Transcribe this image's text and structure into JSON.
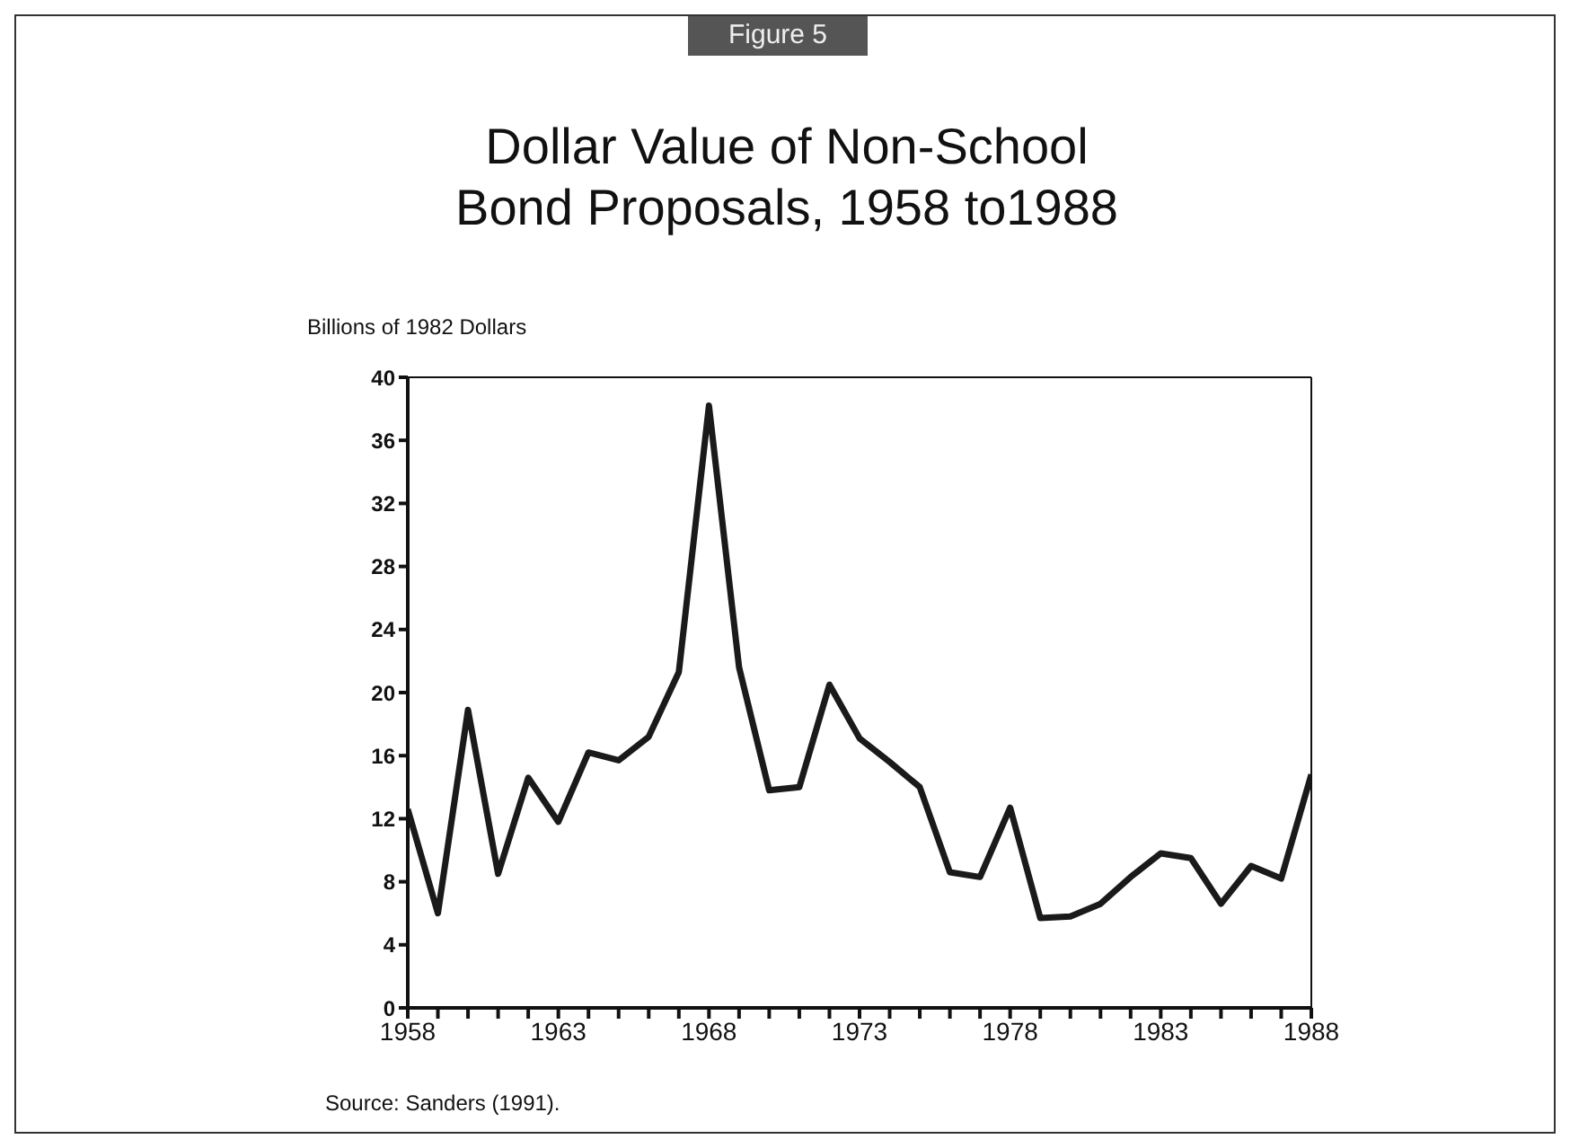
{
  "chart_data": {
    "type": "line",
    "title": "Dollar Value of Non-School\nBond Proposals, 1958 to1988",
    "ylabel": "Billions of 1982 Dollars",
    "annotations": [
      "Figure 5",
      "Source: Sanders (1991)."
    ],
    "x": [
      1958,
      1959,
      1960,
      1961,
      1962,
      1963,
      1964,
      1965,
      1966,
      1967,
      1968,
      1969,
      1970,
      1971,
      1972,
      1973,
      1974,
      1975,
      1976,
      1977,
      1978,
      1979,
      1980,
      1981,
      1982,
      1983,
      1984,
      1985,
      1986,
      1987,
      1988
    ],
    "series": [
      {
        "color": "#1a1a1a",
        "values": [
          12.6,
          6.0,
          18.9,
          8.5,
          14.6,
          11.8,
          16.2,
          15.7,
          17.2,
          21.3,
          38.2,
          21.6,
          13.8,
          14.0,
          20.5,
          17.1,
          15.6,
          14.0,
          8.6,
          8.3,
          12.7,
          5.7,
          5.8,
          6.6,
          8.3,
          9.8,
          9.5,
          6.6,
          9.0,
          8.2,
          14.8
        ]
      }
    ],
    "xlim": [
      1958,
      1988
    ],
    "ylim": [
      0,
      40
    ],
    "xticks": [
      1958,
      {
        "value": 1959,
        "label": null
      },
      {
        "value": 1960,
        "label": null
      },
      {
        "value": 1961,
        "label": null
      },
      {
        "value": 1962,
        "label": null
      },
      1963,
      {
        "value": 1964,
        "label": null
      },
      {
        "value": 1965,
        "label": null
      },
      {
        "value": 1966,
        "label": null
      },
      {
        "value": 1967,
        "label": null
      },
      1968,
      {
        "value": 1969,
        "label": null
      },
      {
        "value": 1970,
        "label": null
      },
      {
        "value": 1971,
        "label": null
      },
      {
        "value": 1972,
        "label": null
      },
      1973,
      {
        "value": 1974,
        "label": null
      },
      {
        "value": 1975,
        "label": null
      },
      {
        "value": 1976,
        "label": null
      },
      {
        "value": 1977,
        "label": null
      },
      1978,
      {
        "value": 1979,
        "label": null
      },
      {
        "value": 1980,
        "label": null
      },
      {
        "value": 1981,
        "label": null
      },
      {
        "value": 1982,
        "label": null
      },
      1983,
      {
        "value": 1984,
        "label": null
      },
      {
        "value": 1985,
        "label": null
      },
      {
        "value": 1986,
        "label": null
      },
      {
        "value": 1987,
        "label": null
      },
      1988
    ],
    "yticks": [
      0,
      4,
      8,
      12,
      16,
      20,
      24,
      28,
      32,
      36,
      40
    ],
    "grid": false,
    "legend": false,
    "marker": "none",
    "line_style": "solid"
  }
}
